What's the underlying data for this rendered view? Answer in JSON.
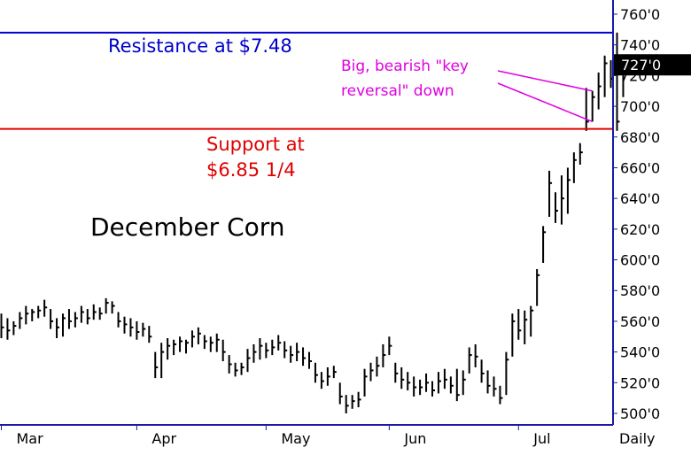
{
  "chart_data": {
    "type": "ohlc",
    "title": "December Corn",
    "period_label": "Daily",
    "y_axis": {
      "min": 500,
      "max": 760,
      "ticks": [
        {
          "value": 500,
          "label": "500'0"
        },
        {
          "value": 520,
          "label": "520'0"
        },
        {
          "value": 540,
          "label": "540'0"
        },
        {
          "value": 560,
          "label": "560'0"
        },
        {
          "value": 580,
          "label": "580'0"
        },
        {
          "value": 600,
          "label": "600'0"
        },
        {
          "value": 620,
          "label": "620'0"
        },
        {
          "value": 640,
          "label": "640'0"
        },
        {
          "value": 660,
          "label": "660'0"
        },
        {
          "value": 680,
          "label": "680'0"
        },
        {
          "value": 700,
          "label": "700'0"
        },
        {
          "value": 720,
          "label": "720'0"
        },
        {
          "value": 740,
          "label": "740'0"
        },
        {
          "value": 760,
          "label": "760'0"
        }
      ]
    },
    "x_axis": {
      "months": [
        {
          "label": "Mar",
          "bar": 0
        },
        {
          "label": "Apr",
          "bar": 22
        },
        {
          "label": "May",
          "bar": 43
        },
        {
          "label": "Jun",
          "bar": 63
        },
        {
          "label": "Jul",
          "bar": 84
        }
      ]
    },
    "last_price": {
      "value": 727,
      "label": "727'0",
      "color": "#000000",
      "text_color": "#ffffff"
    },
    "bars": [
      {
        "h": 565,
        "l": 549,
        "c": 556
      },
      {
        "h": 562,
        "l": 548,
        "c": 554
      },
      {
        "h": 560,
        "l": 551,
        "c": 557
      },
      {
        "h": 566,
        "l": 555,
        "c": 562
      },
      {
        "h": 570,
        "l": 558,
        "c": 565
      },
      {
        "h": 568,
        "l": 560,
        "c": 566
      },
      {
        "h": 570,
        "l": 562,
        "c": 567
      },
      {
        "h": 574,
        "l": 563,
        "c": 569
      },
      {
        "h": 568,
        "l": 555,
        "c": 560
      },
      {
        "h": 562,
        "l": 549,
        "c": 556
      },
      {
        "h": 565,
        "l": 550,
        "c": 562
      },
      {
        "h": 568,
        "l": 555,
        "c": 560
      },
      {
        "h": 566,
        "l": 556,
        "c": 562
      },
      {
        "h": 570,
        "l": 559,
        "c": 566
      },
      {
        "h": 568,
        "l": 558,
        "c": 562
      },
      {
        "h": 571,
        "l": 561,
        "c": 566
      },
      {
        "h": 569,
        "l": 561,
        "c": 565
      },
      {
        "h": 575,
        "l": 565,
        "c": 572
      },
      {
        "h": 573,
        "l": 565,
        "c": 570
      },
      {
        "h": 566,
        "l": 556,
        "c": 560
      },
      {
        "h": 563,
        "l": 552,
        "c": 558
      },
      {
        "h": 562,
        "l": 550,
        "c": 556
      },
      {
        "h": 560,
        "l": 548,
        "c": 553
      },
      {
        "h": 559,
        "l": 550,
        "c": 555
      },
      {
        "h": 557,
        "l": 546,
        "c": 550
      },
      {
        "h": 540,
        "l": 523,
        "c": 530
      },
      {
        "h": 546,
        "l": 523,
        "c": 540
      },
      {
        "h": 549,
        "l": 535,
        "c": 544
      },
      {
        "h": 548,
        "l": 538,
        "c": 545
      },
      {
        "h": 550,
        "l": 540,
        "c": 547
      },
      {
        "h": 548,
        "l": 539,
        "c": 546
      },
      {
        "h": 554,
        "l": 543,
        "c": 550
      },
      {
        "h": 556,
        "l": 545,
        "c": 552
      },
      {
        "h": 551,
        "l": 542,
        "c": 547
      },
      {
        "h": 550,
        "l": 540,
        "c": 546
      },
      {
        "h": 552,
        "l": 540,
        "c": 548
      },
      {
        "h": 548,
        "l": 534,
        "c": 540
      },
      {
        "h": 538,
        "l": 526,
        "c": 532
      },
      {
        "h": 533,
        "l": 524,
        "c": 528
      },
      {
        "h": 533,
        "l": 525,
        "c": 530
      },
      {
        "h": 542,
        "l": 527,
        "c": 536
      },
      {
        "h": 545,
        "l": 533,
        "c": 540
      },
      {
        "h": 549,
        "l": 535,
        "c": 544
      },
      {
        "h": 546,
        "l": 536,
        "c": 541
      },
      {
        "h": 548,
        "l": 538,
        "c": 543
      },
      {
        "h": 551,
        "l": 541,
        "c": 546
      },
      {
        "h": 547,
        "l": 536,
        "c": 541
      },
      {
        "h": 544,
        "l": 533,
        "c": 538
      },
      {
        "h": 546,
        "l": 534,
        "c": 540
      },
      {
        "h": 543,
        "l": 531,
        "c": 536
      },
      {
        "h": 540,
        "l": 529,
        "c": 534
      },
      {
        "h": 533,
        "l": 520,
        "c": 525
      },
      {
        "h": 527,
        "l": 516,
        "c": 521
      },
      {
        "h": 530,
        "l": 518,
        "c": 524
      },
      {
        "h": 531,
        "l": 523,
        "c": 527
      },
      {
        "h": 520,
        "l": 506,
        "c": 511
      },
      {
        "h": 512,
        "l": 500,
        "c": 505
      },
      {
        "h": 512,
        "l": 503,
        "c": 508
      },
      {
        "h": 514,
        "l": 504,
        "c": 509
      },
      {
        "h": 529,
        "l": 511,
        "c": 524
      },
      {
        "h": 533,
        "l": 521,
        "c": 528
      },
      {
        "h": 537,
        "l": 524,
        "c": 531
      },
      {
        "h": 545,
        "l": 530,
        "c": 538
      },
      {
        "h": 550,
        "l": 538,
        "c": 544
      },
      {
        "h": 533,
        "l": 520,
        "c": 526
      },
      {
        "h": 530,
        "l": 516,
        "c": 522
      },
      {
        "h": 527,
        "l": 515,
        "c": 520
      },
      {
        "h": 524,
        "l": 511,
        "c": 517
      },
      {
        "h": 522,
        "l": 512,
        "c": 517
      },
      {
        "h": 526,
        "l": 514,
        "c": 520
      },
      {
        "h": 521,
        "l": 511,
        "c": 515
      },
      {
        "h": 527,
        "l": 513,
        "c": 521
      },
      {
        "h": 529,
        "l": 516,
        "c": 522
      },
      {
        "h": 524,
        "l": 513,
        "c": 518
      },
      {
        "h": 529,
        "l": 508,
        "c": 512
      },
      {
        "h": 528,
        "l": 512,
        "c": 522
      },
      {
        "h": 543,
        "l": 526,
        "c": 538
      },
      {
        "h": 545,
        "l": 530,
        "c": 537
      },
      {
        "h": 535,
        "l": 520,
        "c": 526
      },
      {
        "h": 528,
        "l": 513,
        "c": 518
      },
      {
        "h": 524,
        "l": 511,
        "c": 516
      },
      {
        "h": 518,
        "l": 506,
        "c": 510
      },
      {
        "h": 540,
        "l": 512,
        "c": 535
      },
      {
        "h": 565,
        "l": 537,
        "c": 560
      },
      {
        "h": 568,
        "l": 548,
        "c": 554
      },
      {
        "h": 567,
        "l": 545,
        "c": 561
      },
      {
        "h": 570,
        "l": 550,
        "c": 567
      },
      {
        "h": 594,
        "l": 570,
        "c": 590
      },
      {
        "h": 622,
        "l": 598,
        "c": 618
      },
      {
        "h": 658,
        "l": 628,
        "c": 650
      },
      {
        "h": 644,
        "l": 624,
        "c": 632
      },
      {
        "h": 655,
        "l": 623,
        "c": 640
      },
      {
        "h": 660,
        "l": 630,
        "c": 652
      },
      {
        "h": 670,
        "l": 650,
        "c": 665
      },
      {
        "h": 676,
        "l": 662,
        "c": 670
      },
      {
        "h": 712,
        "l": 684,
        "c": 690
      },
      {
        "h": 710,
        "l": 690,
        "c": 706
      },
      {
        "h": 722,
        "l": 698,
        "c": 713
      },
      {
        "h": 733,
        "l": 706,
        "c": 728
      },
      {
        "h": 730,
        "l": 712,
        "c": 718
      },
      {
        "h": 748,
        "l": 684,
        "c": 690
      },
      {
        "h": 729,
        "l": 706,
        "c": 727
      }
    ],
    "lines": [
      {
        "label": "Resistance at $7.48",
        "value": 748,
        "color": "#0000cc"
      },
      {
        "label": "Support at $6.85 1/4",
        "value": 685.25,
        "color": "#e00000"
      }
    ],
    "annotations": {
      "resistance_label": "Resistance at $7.48",
      "support_label_line1": "Support at",
      "support_label_line2": "$6.85 1/4",
      "reversal_line1": "Big, bearish \"key",
      "reversal_line2": "reversal\" down",
      "reversal_color": "#e000e0",
      "reversal_bar": 96
    },
    "colors": {
      "bars": "#000000",
      "border": "#1a1aa8",
      "text": "#000000"
    }
  }
}
